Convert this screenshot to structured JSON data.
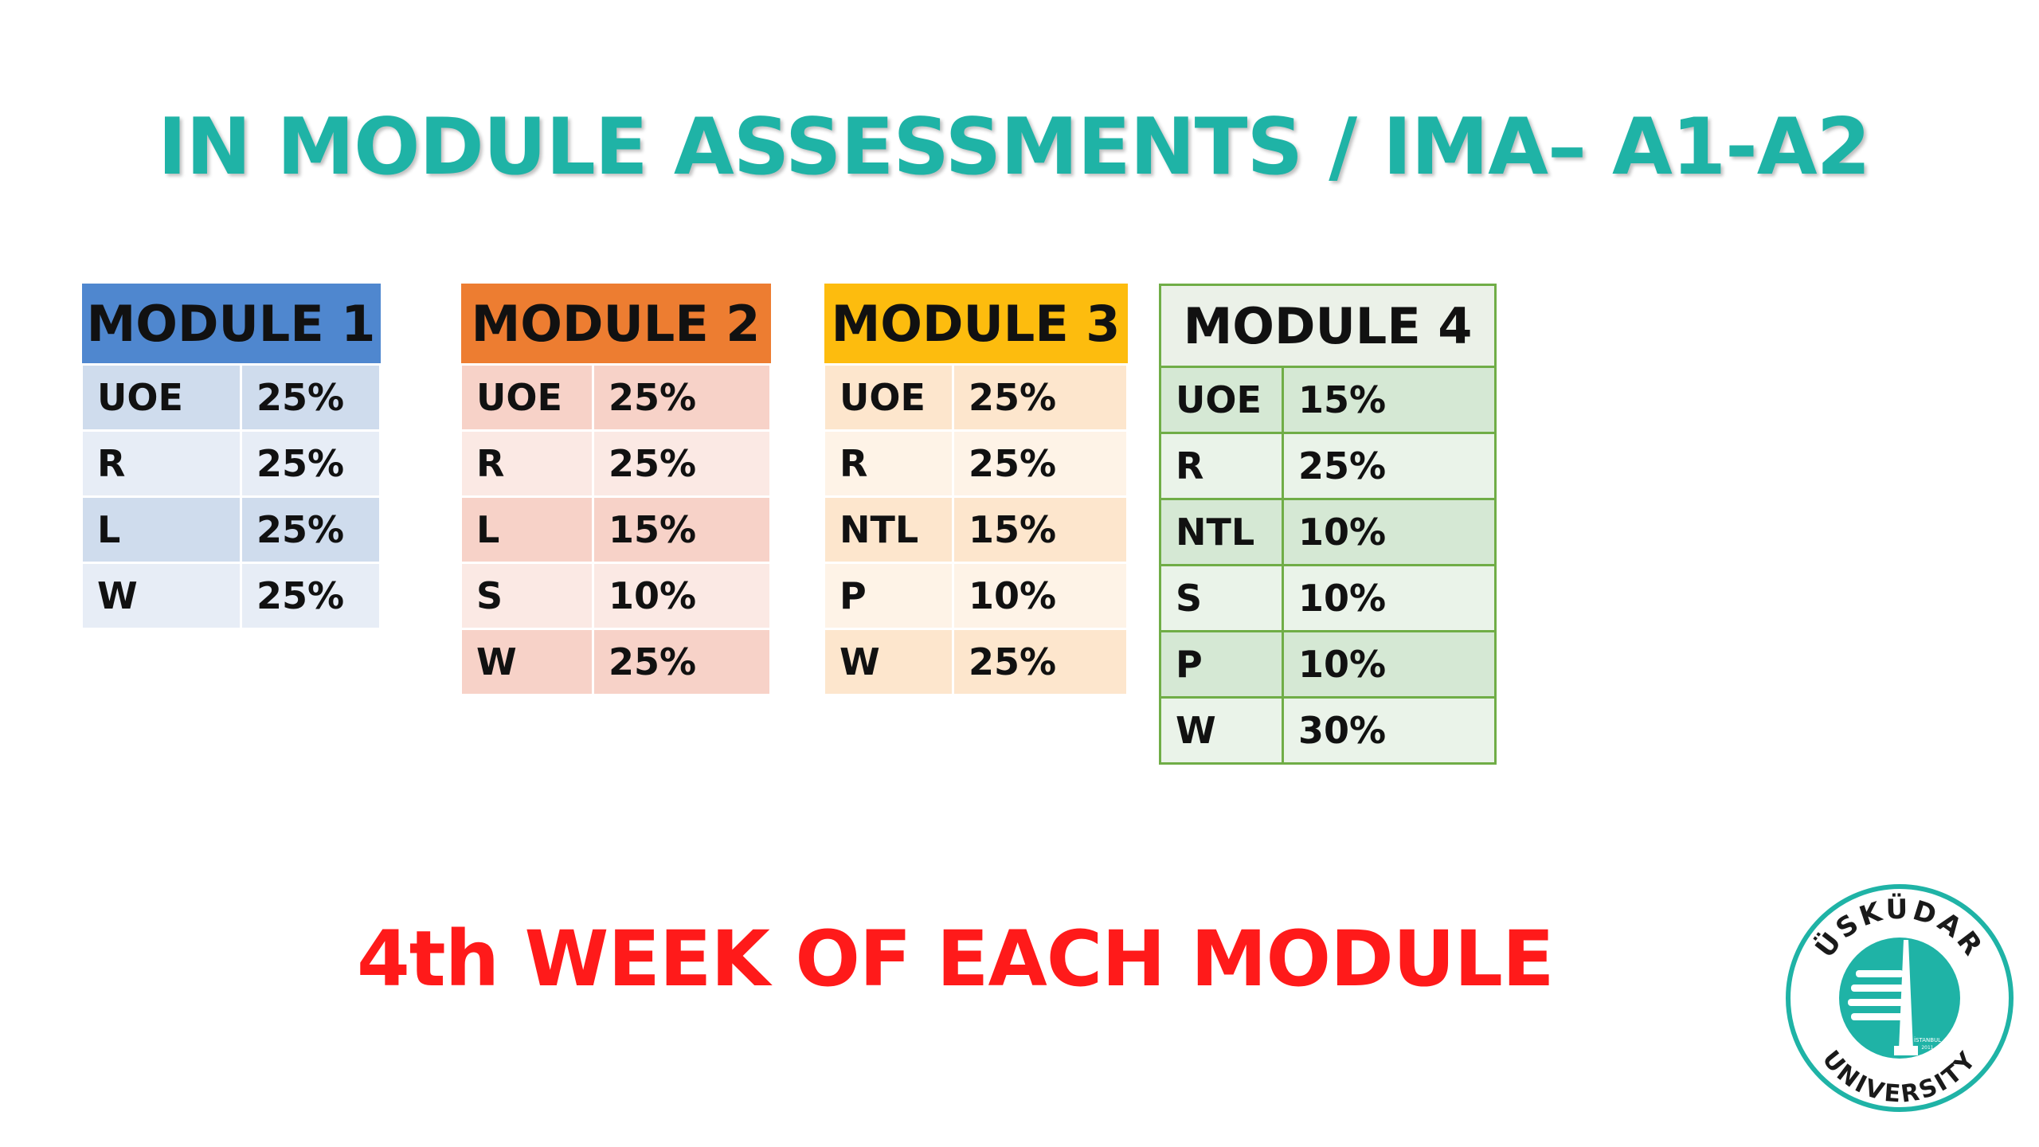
{
  "title": "IN MODULE ASSESSMENTS / IMA– A1-A2",
  "modules": [
    {
      "name": "MODULE 1",
      "rows": [
        {
          "skill": "UOE",
          "weight": "25%"
        },
        {
          "skill": "R",
          "weight": "25%"
        },
        {
          "skill": "L",
          "weight": "25%"
        },
        {
          "skill": "W",
          "weight": "25%"
        }
      ]
    },
    {
      "name": "MODULE 2",
      "rows": [
        {
          "skill": "UOE",
          "weight": "25%"
        },
        {
          "skill": "R",
          "weight": "25%"
        },
        {
          "skill": "L",
          "weight": "15%"
        },
        {
          "skill": "S",
          "weight": "10%"
        },
        {
          "skill": "W",
          "weight": "25%"
        }
      ]
    },
    {
      "name": "MODULE 3",
      "rows": [
        {
          "skill": "UOE",
          "weight": "25%"
        },
        {
          "skill": "R",
          "weight": "25%"
        },
        {
          "skill": "NTL",
          "weight": "15%"
        },
        {
          "skill": "P",
          "weight": "10%"
        },
        {
          "skill": "W",
          "weight": "25%"
        }
      ]
    },
    {
      "name": "MODULE 4",
      "rows": [
        {
          "skill": "UOE",
          "weight": "15%"
        },
        {
          "skill": "R",
          "weight": "25%"
        },
        {
          "skill": "NTL",
          "weight": "10%"
        },
        {
          "skill": "S",
          "weight": "10%"
        },
        {
          "skill": "P",
          "weight": "10%"
        },
        {
          "skill": "W",
          "weight": "30%"
        }
      ]
    }
  ],
  "subtitle": "4th WEEK OF EACH MODULE",
  "logo": {
    "top_text": "ÜSKÜDAR",
    "bottom_text": "UNIVERSITY",
    "small_text_1": "İSTANBUL",
    "small_text_2": "2011",
    "color": "#1fb3a6"
  }
}
